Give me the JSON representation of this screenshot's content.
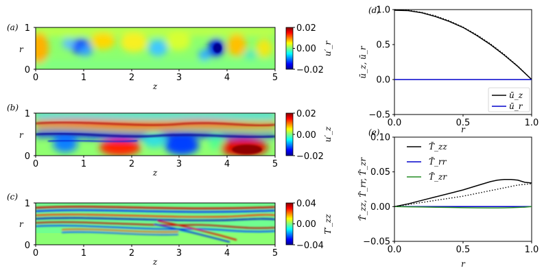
{
  "chart_data": [
    {
      "panel": "(a)",
      "type": "heatmap",
      "xlabel": "z",
      "ylabel": "r",
      "xlim": [
        0,
        5
      ],
      "ylim": [
        0,
        1
      ],
      "x_ticks": [
        "0",
        "1",
        "2",
        "3",
        "4",
        "5"
      ],
      "y_ticks": [
        "0",
        "1"
      ],
      "colorbar_label": "u′_r",
      "colorbar_ticks": [
        "0.02",
        "0.00",
        "−0.02"
      ],
      "clim": [
        -0.02,
        0.02
      ],
      "colormap": "jet",
      "features": [
        {
          "z": 0.1,
          "r": 0.45,
          "value": 0.012
        },
        {
          "z": 0.95,
          "r": 0.45,
          "value": -0.013
        },
        {
          "z": 1.35,
          "r": 0.6,
          "value": 0.008
        },
        {
          "z": 2.0,
          "r": 0.4,
          "value": 0.006
        },
        {
          "z": 2.55,
          "r": 0.5,
          "value": -0.004
        },
        {
          "z": 3.85,
          "r": 0.55,
          "value": -0.02
        },
        {
          "z": 4.25,
          "r": 0.5,
          "value": 0.01
        },
        {
          "z": 4.7,
          "r": 0.45,
          "value": 0.006
        }
      ]
    },
    {
      "panel": "(b)",
      "type": "heatmap",
      "xlabel": "z",
      "ylabel": "r",
      "xlim": [
        0,
        5
      ],
      "ylim": [
        0,
        1
      ],
      "x_ticks": [
        "0",
        "1",
        "2",
        "3",
        "4",
        "5"
      ],
      "y_ticks": [
        "0",
        "1"
      ],
      "colorbar_label": "u′_z",
      "colorbar_ticks": [
        "0.02",
        "0.00",
        "−0.02"
      ],
      "clim": [
        -0.02,
        0.02
      ],
      "colormap": "jet",
      "features": [
        {
          "z": 1.7,
          "r": 0.15,
          "value": 0.02
        },
        {
          "z": 4.3,
          "r": 0.15,
          "value": 0.02
        },
        {
          "z": 3.0,
          "r": 0.2,
          "value": -0.015
        },
        {
          "z": 0.6,
          "r": 0.2,
          "value": -0.012
        },
        {
          "z": 2.5,
          "r": 0.8,
          "value": 0.014
        },
        {
          "z": 1.8,
          "r": 0.62,
          "value": -0.016
        }
      ]
    },
    {
      "panel": "(c)",
      "type": "heatmap",
      "xlabel": "z",
      "ylabel": "r",
      "xlim": [
        0,
        5
      ],
      "ylim": [
        0,
        1
      ],
      "x_ticks": [
        "0",
        "1",
        "2",
        "3",
        "4",
        "5"
      ],
      "y_ticks": [
        "0",
        "1"
      ],
      "colorbar_label": "T′_zz",
      "colorbar_ticks": [
        "0.04",
        "0.00",
        "−0.04"
      ],
      "clim": [
        -0.04,
        0.04
      ],
      "colormap": "jet",
      "features": [
        {
          "z": 2.5,
          "r": 0.7,
          "value": 0.04
        },
        {
          "z": 2.5,
          "r": 0.55,
          "value": -0.04
        },
        {
          "z": 4.0,
          "r": 0.25,
          "value": 0.03
        }
      ]
    },
    {
      "panel": "(d)",
      "type": "line",
      "xlabel": "r",
      "ylabel": "ū_z, ū_r",
      "xlim": [
        0,
        1
      ],
      "ylim": [
        -0.5,
        1.0
      ],
      "x_ticks": [
        "0.0",
        "0.5",
        "1.0"
      ],
      "y_ticks": [
        "1.0",
        "0.5",
        "0.0",
        "−0.5"
      ],
      "legend_position": "lower-right",
      "x": [
        0,
        0.1,
        0.2,
        0.3,
        0.4,
        0.5,
        0.6,
        0.7,
        0.8,
        0.9,
        1.0
      ],
      "series": [
        {
          "name": "ū_z",
          "color": "#000000",
          "style": "solid",
          "values": [
            0.99,
            0.985,
            0.955,
            0.9,
            0.83,
            0.745,
            0.63,
            0.5,
            0.35,
            0.185,
            0.0
          ]
        },
        {
          "name": "ū_r",
          "color": "#0000cc",
          "style": "solid",
          "values": [
            0,
            0,
            0,
            0,
            0,
            0,
            0,
            0,
            0,
            0,
            0
          ]
        },
        {
          "name": "",
          "color": "#000000",
          "style": "dotted",
          "values": [
            1.0,
            0.99,
            0.96,
            0.91,
            0.84,
            0.75,
            0.64,
            0.51,
            0.36,
            0.19,
            0.0
          ]
        }
      ]
    },
    {
      "panel": "(e)",
      "type": "line",
      "xlabel": "r",
      "ylabel": "T̄_zz, T̄_rr, T̄_zr",
      "xlim": [
        0,
        1
      ],
      "ylim": [
        -0.05,
        0.1
      ],
      "x_ticks": [
        "0.0",
        "0.5",
        "1.0"
      ],
      "y_ticks": [
        "0.10",
        "0.05",
        "0.00",
        "−0.05"
      ],
      "legend_position": "top-left",
      "x": [
        0,
        0.1,
        0.2,
        0.3,
        0.4,
        0.5,
        0.6,
        0.7,
        0.75,
        0.8,
        0.85,
        0.9,
        0.95,
        1.0
      ],
      "series": [
        {
          "name": "T̄_zz",
          "color": "#000000",
          "style": "solid",
          "values": [
            0.0,
            0.004,
            0.009,
            0.014,
            0.019,
            0.024,
            0.03,
            0.036,
            0.038,
            0.039,
            0.039,
            0.038,
            0.035,
            0.034
          ]
        },
        {
          "name": "T̄_rr",
          "color": "#0000cc",
          "style": "solid",
          "values": [
            0,
            0,
            0,
            0,
            0,
            0,
            0,
            0,
            0,
            0,
            0,
            0,
            0,
            0
          ]
        },
        {
          "name": "T̄_zr",
          "color": "#228b22",
          "style": "solid",
          "values": [
            0.0,
            -0.0003,
            -0.0006,
            -0.0009,
            -0.0012,
            -0.0015,
            -0.0017,
            -0.0018,
            -0.0018,
            -0.0017,
            -0.0015,
            -0.0012,
            -0.0008,
            0.0
          ]
        },
        {
          "name": "",
          "color": "#000000",
          "style": "dotted",
          "values": [
            0.0,
            0.003,
            0.006,
            0.009,
            0.012,
            0.015,
            0.019,
            0.023,
            0.025,
            0.027,
            0.029,
            0.031,
            0.032,
            0.033
          ]
        }
      ]
    }
  ]
}
